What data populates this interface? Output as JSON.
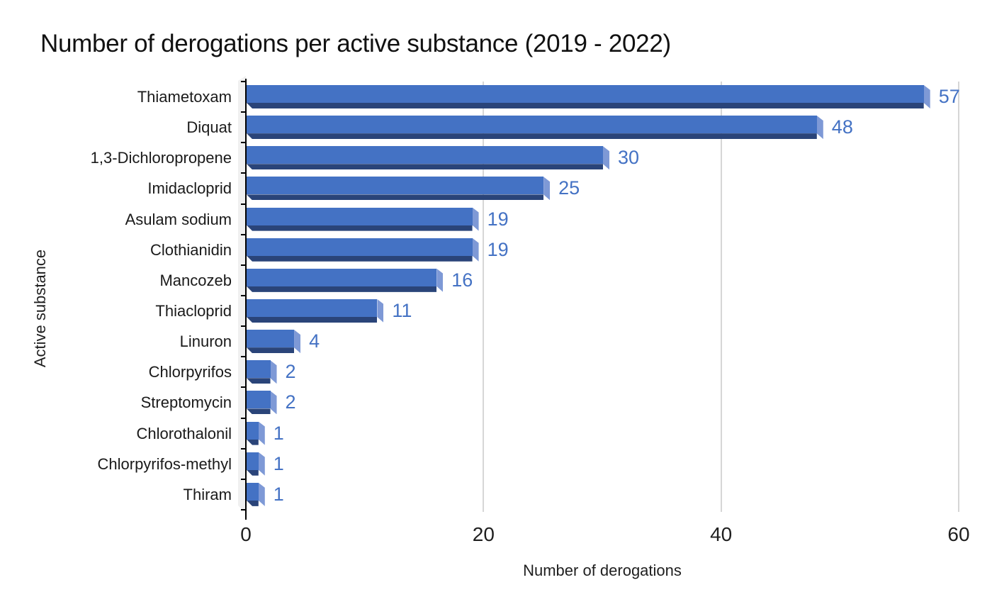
{
  "chart_data": {
    "type": "bar",
    "orientation": "horizontal",
    "title": "Number of derogations per active substance (2019 - 2022)",
    "xlabel": "Number of derogations",
    "ylabel": "Active substance",
    "categories": [
      "Thiametoxam",
      "Diquat",
      "1,3-Dichloropropene",
      "Imidacloprid",
      "Asulam sodium",
      "Clothianidin",
      "Mancozeb",
      "Thiacloprid",
      "Linuron",
      "Chlorpyrifos",
      "Streptomycin",
      "Chlorothalonil",
      "Chlorpyrifos-methyl",
      "Thiram"
    ],
    "values": [
      57,
      48,
      30,
      25,
      19,
      19,
      16,
      11,
      4,
      2,
      2,
      1,
      1,
      1
    ],
    "data_labels": [
      57,
      48,
      30,
      25,
      19,
      19,
      16,
      11,
      4,
      2,
      2,
      1,
      1,
      1
    ],
    "xlim": [
      0,
      60
    ],
    "xticks": [
      0,
      20,
      40,
      60
    ],
    "grid": "vertical-only",
    "legend": null,
    "style": "3d-horizontal-bars",
    "colors": {
      "bar": "#4472C4",
      "bar_bottom_shade": "#2A4479",
      "bar_end_cap": "#7E99D6",
      "value_label": "#4472C4",
      "gridline": "#D6D6D6",
      "axis": "#000000",
      "wall": "#F0F0F0",
      "text": "#1F1F1F",
      "background": "#FFFFFF"
    }
  }
}
